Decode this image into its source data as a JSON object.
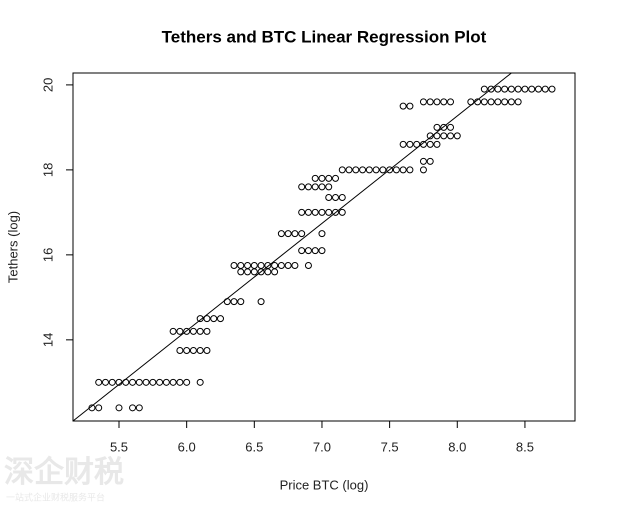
{
  "chart_data": {
    "type": "scatter",
    "title": "Tethers and BTC Linear Regression Plot",
    "x_label": "Price BTC (log)",
    "y_label": "Tethers (log)",
    "xlim": [
      5.16,
      8.87
    ],
    "ylim": [
      12.09,
      20.28
    ],
    "xticks": [
      5.5,
      {
        "value": 6,
        "label": "6.0"
      },
      6.5,
      {
        "value": 7,
        "label": "7.0"
      },
      7.5,
      {
        "value": 8,
        "label": "8.0"
      },
      8.5
    ],
    "yticks": [
      14,
      16,
      18,
      20
    ],
    "color": "#000000",
    "points": {
      "x": [
        5.3,
        5.35,
        5.5,
        5.6,
        5.65,
        5.35,
        5.4,
        5.45,
        5.5,
        5.55,
        5.6,
        5.65,
        5.7,
        5.75,
        5.8,
        5.85,
        5.9,
        5.95,
        6.0,
        6.1,
        5.95,
        6.0,
        6.05,
        6.1,
        6.15,
        5.9,
        5.95,
        6.0,
        6.05,
        6.1,
        6.15,
        6.1,
        6.15,
        6.2,
        6.25,
        6.3,
        6.35,
        6.4,
        6.55,
        6.4,
        6.45,
        6.5,
        6.55,
        6.6,
        6.65,
        6.35,
        6.4,
        6.45,
        6.5,
        6.55,
        6.6,
        6.65,
        6.7,
        6.75,
        6.8,
        6.9,
        6.85,
        6.9,
        6.95,
        7.0,
        6.7,
        6.75,
        6.8,
        6.85,
        7.0,
        6.85,
        6.9,
        6.95,
        7.0,
        7.05,
        7.1,
        7.15,
        7.05,
        7.1,
        7.15,
        6.85,
        6.9,
        6.95,
        7.0,
        7.05,
        6.95,
        7.0,
        7.05,
        7.1,
        7.15,
        7.2,
        7.25,
        7.3,
        7.35,
        7.4,
        7.45,
        7.5,
        7.55,
        7.6,
        7.65,
        7.75,
        7.75,
        7.8,
        7.6,
        7.65,
        7.7,
        7.75,
        7.8,
        7.85,
        7.8,
        7.85,
        7.9,
        7.95,
        8.0,
        7.85,
        7.9,
        7.95,
        7.6,
        7.65,
        7.75,
        7.8,
        7.85,
        7.9,
        7.95,
        8.1,
        8.15,
        8.2,
        8.25,
        8.3,
        8.35,
        8.4,
        8.45,
        8.2,
        8.25,
        8.3,
        8.35,
        8.4,
        8.45,
        8.5,
        8.55,
        8.6,
        8.65,
        8.7
      ],
      "y": [
        12.4,
        12.4,
        12.4,
        12.4,
        12.4,
        13,
        13,
        13,
        13,
        13,
        13,
        13,
        13,
        13,
        13,
        13,
        13,
        13,
        13,
        13,
        13.75,
        13.75,
        13.75,
        13.75,
        13.75,
        14.2,
        14.2,
        14.2,
        14.2,
        14.2,
        14.2,
        14.5,
        14.5,
        14.5,
        14.5,
        14.9,
        14.9,
        14.9,
        14.9,
        15.6,
        15.6,
        15.6,
        15.6,
        15.6,
        15.6,
        15.75,
        15.75,
        15.75,
        15.75,
        15.75,
        15.75,
        15.75,
        15.75,
        15.75,
        15.75,
        15.75,
        16.1,
        16.1,
        16.1,
        16.1,
        16.5,
        16.5,
        16.5,
        16.5,
        16.5,
        17,
        17,
        17,
        17,
        17,
        17,
        17,
        17.35,
        17.35,
        17.35,
        17.6,
        17.6,
        17.6,
        17.6,
        17.6,
        17.8,
        17.8,
        17.8,
        17.8,
        18,
        18,
        18,
        18,
        18,
        18,
        18,
        18,
        18,
        18,
        18,
        18,
        18.2,
        18.2,
        18.6,
        18.6,
        18.6,
        18.6,
        18.6,
        18.6,
        18.8,
        18.8,
        18.8,
        18.8,
        18.8,
        19,
        19,
        19,
        19.5,
        19.5,
        19.6,
        19.6,
        19.6,
        19.6,
        19.6,
        19.6,
        19.6,
        19.6,
        19.6,
        19.6,
        19.6,
        19.6,
        19.6,
        19.9,
        19.9,
        19.9,
        19.9,
        19.9,
        19.9,
        19.9,
        19.9,
        19.9,
        19.9,
        19.9
      ]
    },
    "fit_line": {
      "x": [
        5.16,
        8.4
      ],
      "y": [
        12.09,
        20.28
      ]
    }
  },
  "watermark": {
    "title": "深企财税",
    "subtitle": "一站式企业财税服务平台"
  }
}
